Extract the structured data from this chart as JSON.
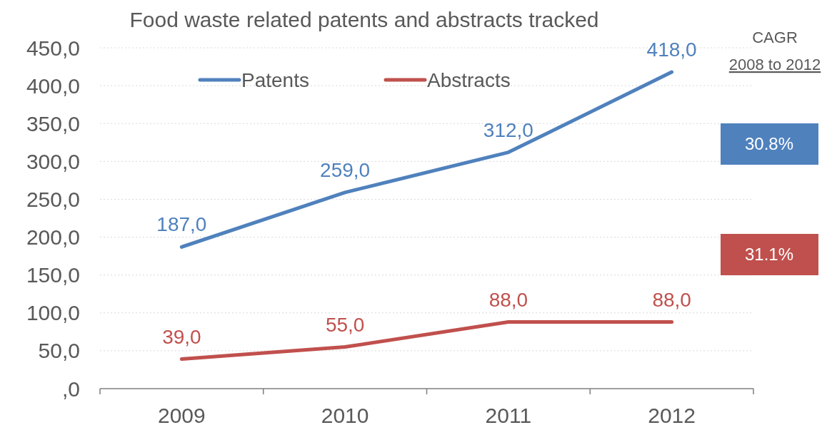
{
  "chart_data": {
    "type": "line",
    "title": "Food waste related patents and abstracts tracked",
    "categories": [
      "2009",
      "2010",
      "2011",
      "2012"
    ],
    "series": [
      {
        "name": "Patents",
        "color": "#4f81bd",
        "values": [
          187,
          259,
          312,
          418
        ],
        "value_labels": [
          "187,0",
          "259,0",
          "312,0",
          "418,0"
        ]
      },
      {
        "name": "Abstracts",
        "color": "#c0504d",
        "values": [
          39,
          55,
          88,
          88
        ],
        "value_labels": [
          "39,0",
          "55,0",
          "88,0",
          "88,0"
        ]
      }
    ],
    "ylim": [
      0,
      450
    ],
    "yticks": [
      {
        "value": 0,
        "label": ",0"
      },
      {
        "value": 50,
        "label": "50,0"
      },
      {
        "value": 100,
        "label": "100,0"
      },
      {
        "value": 150,
        "label": "150,0"
      },
      {
        "value": 200,
        "label": "200,0"
      },
      {
        "value": 250,
        "label": "250,0"
      },
      {
        "value": 300,
        "label": "300,0"
      },
      {
        "value": 350,
        "label": "350,0"
      },
      {
        "value": 400,
        "label": "400,0"
      },
      {
        "value": 450,
        "label": "450,0"
      }
    ],
    "grid": "y",
    "legend": "top",
    "marker": "none",
    "line_style": "solid",
    "annotations": [
      "CAGR",
      "2008 to 2012",
      "30.8%",
      "31.1%"
    ]
  }
}
